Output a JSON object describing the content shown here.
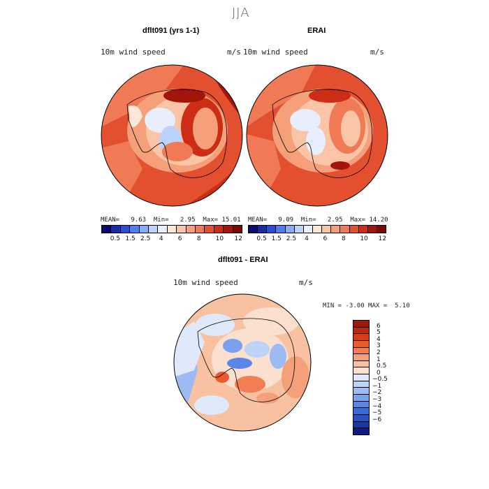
{
  "season": "JJA",
  "left_panel": {
    "title": "dflt091 (yrs 1-1)",
    "var_label": "10m wind speed",
    "units": "m/s",
    "mean_label": "MEAN=",
    "mean_value": "9.63",
    "min_label": "Min=",
    "min_value": "2.95",
    "max_label": "Max=",
    "max_value": "15.01"
  },
  "right_panel": {
    "title": "ERAI",
    "var_label": "10m wind speed",
    "units": "m/s",
    "mean_label": "MEAN=",
    "mean_value": "9.09",
    "min_label": "Min=",
    "min_value": "2.95",
    "max_label": "Max=",
    "max_value": "14.20"
  },
  "diff_panel": {
    "title": "dflt091 - ERAI",
    "var_label": "10m wind speed",
    "units": "m/s",
    "min_label": "MIN =",
    "min_value": "-3.00",
    "max_label": "MAX =",
    "max_value": "5.10"
  },
  "abs_colorbar": {
    "colors": [
      "#0b0a70",
      "#1a2aa8",
      "#2c4fd6",
      "#4f7ef0",
      "#86acf6",
      "#bcd2fb",
      "#e8eefb",
      "#fde7d8",
      "#f9c5a6",
      "#f5a07a",
      "#ef7a55",
      "#e3502f",
      "#cc2d14",
      "#a3150a",
      "#7a0a04"
    ],
    "tick_labels": [
      "0.5",
      "1.5",
      "2.5",
      "4",
      "6",
      "8",
      "10",
      "12"
    ]
  },
  "diff_colorbar": {
    "colors": [
      "#9c1a0a",
      "#c0260d",
      "#dc3a14",
      "#ea5a2c",
      "#f07e52",
      "#f4a07a",
      "#f8c2a2",
      "#fbe0cf",
      "#dfe9fa",
      "#bcd2f7",
      "#9dbaf3",
      "#7ba0ee",
      "#5a86e8",
      "#3c6ad8",
      "#2850be",
      "#1a37a0",
      "#0c1c82"
    ],
    "tick_labels": [
      "6",
      "5",
      "4",
      "3",
      "2",
      "1",
      "0.5",
      "0",
      "-0.5",
      "-1",
      "-2",
      "-3",
      "-4",
      "-5",
      "-6"
    ]
  }
}
